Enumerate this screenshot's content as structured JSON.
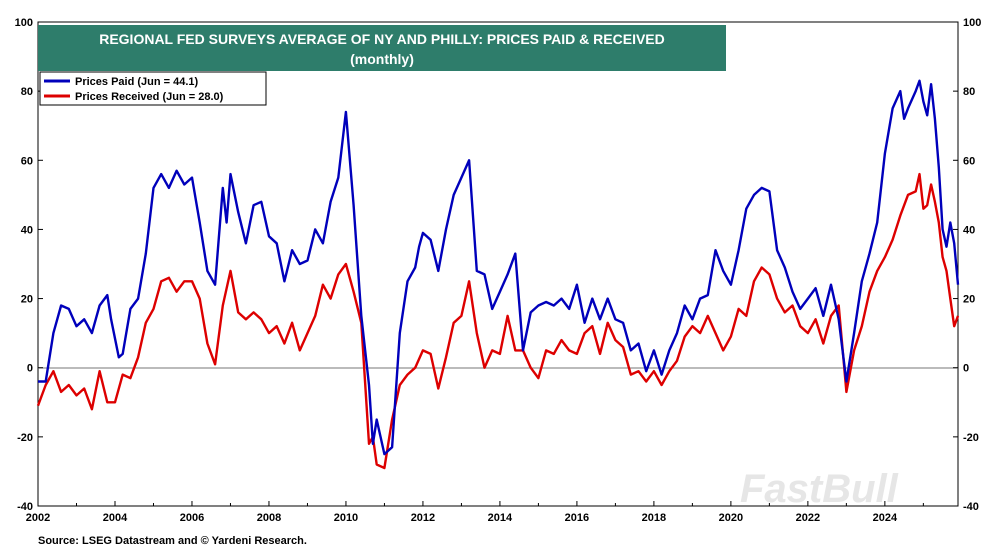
{
  "chart_data": {
    "type": "line",
    "title": "REGIONAL FED SURVEYS AVERAGE OF NY AND PHILLY: PRICES PAID & RECEIVED",
    "subtitle": "(monthly)",
    "xlabel": "",
    "ylabel": "",
    "xlim": [
      2002,
      2025.9
    ],
    "ylim": [
      -40,
      100
    ],
    "x_ticks": [
      2002,
      2004,
      2006,
      2008,
      2010,
      2012,
      2014,
      2016,
      2018,
      2020,
      2022,
      2024
    ],
    "y_ticks": [
      -40,
      -20,
      0,
      20,
      40,
      60,
      80,
      100
    ],
    "reference_line": 0,
    "grid": false,
    "legend_position": "top-left",
    "series": [
      {
        "name": "Prices Paid (Jun = 44.1)",
        "color": "#0000bb",
        "points": [
          [
            2002.0,
            -4
          ],
          [
            2002.2,
            -4
          ],
          [
            2002.4,
            10
          ],
          [
            2002.6,
            18
          ],
          [
            2002.8,
            17
          ],
          [
            2003.0,
            12
          ],
          [
            2003.2,
            14
          ],
          [
            2003.4,
            10
          ],
          [
            2003.6,
            18
          ],
          [
            2003.8,
            21
          ],
          [
            2003.9,
            14
          ],
          [
            2004.1,
            3
          ],
          [
            2004.2,
            4
          ],
          [
            2004.4,
            17
          ],
          [
            2004.6,
            20
          ],
          [
            2004.8,
            33
          ],
          [
            2005.0,
            52
          ],
          [
            2005.2,
            56
          ],
          [
            2005.4,
            52
          ],
          [
            2005.6,
            57
          ],
          [
            2005.8,
            53
          ],
          [
            2006.0,
            55
          ],
          [
            2006.2,
            42
          ],
          [
            2006.4,
            28
          ],
          [
            2006.6,
            24
          ],
          [
            2006.8,
            52
          ],
          [
            2006.9,
            42
          ],
          [
            2007.0,
            56
          ],
          [
            2007.2,
            45
          ],
          [
            2007.4,
            36
          ],
          [
            2007.6,
            47
          ],
          [
            2007.8,
            48
          ],
          [
            2008.0,
            38
          ],
          [
            2008.2,
            36
          ],
          [
            2008.4,
            25
          ],
          [
            2008.6,
            34
          ],
          [
            2008.8,
            30
          ],
          [
            2009.0,
            31
          ],
          [
            2009.2,
            40
          ],
          [
            2009.4,
            36
          ],
          [
            2009.6,
            48
          ],
          [
            2009.8,
            55
          ],
          [
            2010.0,
            74
          ],
          [
            2010.2,
            47
          ],
          [
            2010.4,
            15
          ],
          [
            2010.6,
            -5
          ],
          [
            2010.7,
            -22
          ],
          [
            2010.8,
            -15
          ],
          [
            2011.0,
            -25
          ],
          [
            2011.2,
            -23
          ],
          [
            2011.4,
            10
          ],
          [
            2011.6,
            25
          ],
          [
            2011.8,
            29
          ],
          [
            2011.9,
            35
          ],
          [
            2012.0,
            39
          ],
          [
            2012.2,
            37
          ],
          [
            2012.4,
            28
          ],
          [
            2012.6,
            40
          ],
          [
            2012.8,
            50
          ],
          [
            2013.0,
            55
          ],
          [
            2013.2,
            60
          ],
          [
            2013.4,
            28
          ],
          [
            2013.6,
            27
          ],
          [
            2013.8,
            17
          ],
          [
            2014.0,
            22
          ],
          [
            2014.2,
            27
          ],
          [
            2014.4,
            33
          ],
          [
            2014.6,
            5
          ],
          [
            2014.8,
            16
          ],
          [
            2015.0,
            18
          ],
          [
            2015.2,
            19
          ],
          [
            2015.4,
            18
          ],
          [
            2015.6,
            20
          ],
          [
            2015.8,
            17
          ],
          [
            2016.0,
            24
          ],
          [
            2016.2,
            13
          ],
          [
            2016.4,
            20
          ],
          [
            2016.6,
            14
          ],
          [
            2016.8,
            20
          ],
          [
            2017.0,
            14
          ],
          [
            2017.2,
            13
          ],
          [
            2017.4,
            5
          ],
          [
            2017.6,
            7
          ],
          [
            2017.8,
            -1
          ],
          [
            2018.0,
            5
          ],
          [
            2018.2,
            -2
          ],
          [
            2018.4,
            5
          ],
          [
            2018.6,
            10
          ],
          [
            2018.8,
            18
          ],
          [
            2019.0,
            14
          ],
          [
            2019.2,
            20
          ],
          [
            2019.4,
            21
          ],
          [
            2019.6,
            34
          ],
          [
            2019.8,
            28
          ],
          [
            2020.0,
            24
          ],
          [
            2020.2,
            34
          ],
          [
            2020.4,
            46
          ],
          [
            2020.6,
            50
          ],
          [
            2020.8,
            52
          ],
          [
            2021.0,
            51
          ],
          [
            2021.2,
            34
          ],
          [
            2021.4,
            29
          ],
          [
            2021.6,
            22
          ],
          [
            2021.8,
            17
          ],
          [
            2022.0,
            20
          ],
          [
            2022.2,
            23
          ],
          [
            2022.4,
            15
          ],
          [
            2022.6,
            24
          ],
          [
            2022.8,
            14
          ],
          [
            2023.0,
            -4
          ],
          [
            2023.2,
            10
          ],
          [
            2023.4,
            25
          ],
          [
            2023.6,
            33
          ],
          [
            2023.8,
            42
          ],
          [
            2024.0,
            62
          ],
          [
            2024.2,
            75
          ],
          [
            2024.4,
            80
          ],
          [
            2024.5,
            72
          ],
          [
            2024.6,
            75
          ],
          [
            2024.8,
            80
          ],
          [
            2024.9,
            83
          ],
          [
            2025.0,
            77
          ],
          [
            2025.1,
            73
          ],
          [
            2025.2,
            82
          ],
          [
            2025.3,
            72
          ],
          [
            2025.4,
            58
          ],
          [
            2025.5,
            40
          ],
          [
            2025.6,
            35
          ],
          [
            2025.7,
            42
          ],
          [
            2025.8,
            36
          ],
          [
            2025.9,
            24
          ]
        ]
      },
      {
        "name": "Prices Received (Jun = 28.0)",
        "color": "#dd0000",
        "points": [
          [
            2002.0,
            -11
          ],
          [
            2002.2,
            -5
          ],
          [
            2002.4,
            -1
          ],
          [
            2002.6,
            -7
          ],
          [
            2002.8,
            -5
          ],
          [
            2003.0,
            -8
          ],
          [
            2003.2,
            -6
          ],
          [
            2003.4,
            -12
          ],
          [
            2003.6,
            -1
          ],
          [
            2003.8,
            -10
          ],
          [
            2004.0,
            -10
          ],
          [
            2004.2,
            -2
          ],
          [
            2004.4,
            -3
          ],
          [
            2004.6,
            3
          ],
          [
            2004.8,
            13
          ],
          [
            2005.0,
            17
          ],
          [
            2005.2,
            25
          ],
          [
            2005.4,
            26
          ],
          [
            2005.6,
            22
          ],
          [
            2005.8,
            25
          ],
          [
            2006.0,
            25
          ],
          [
            2006.2,
            20
          ],
          [
            2006.4,
            7
          ],
          [
            2006.6,
            1
          ],
          [
            2006.8,
            18
          ],
          [
            2007.0,
            28
          ],
          [
            2007.2,
            16
          ],
          [
            2007.4,
            14
          ],
          [
            2007.6,
            16
          ],
          [
            2007.8,
            14
          ],
          [
            2008.0,
            10
          ],
          [
            2008.2,
            12
          ],
          [
            2008.4,
            7
          ],
          [
            2008.6,
            13
          ],
          [
            2008.8,
            5
          ],
          [
            2009.0,
            10
          ],
          [
            2009.2,
            15
          ],
          [
            2009.4,
            24
          ],
          [
            2009.6,
            20
          ],
          [
            2009.8,
            27
          ],
          [
            2010.0,
            30
          ],
          [
            2010.2,
            22
          ],
          [
            2010.4,
            13
          ],
          [
            2010.6,
            -22
          ],
          [
            2010.7,
            -20
          ],
          [
            2010.8,
            -28
          ],
          [
            2011.0,
            -29
          ],
          [
            2011.2,
            -15
          ],
          [
            2011.4,
            -5
          ],
          [
            2011.6,
            -2
          ],
          [
            2011.8,
            0
          ],
          [
            2012.0,
            5
          ],
          [
            2012.2,
            4
          ],
          [
            2012.4,
            -6
          ],
          [
            2012.6,
            3
          ],
          [
            2012.8,
            13
          ],
          [
            2013.0,
            15
          ],
          [
            2013.2,
            25
          ],
          [
            2013.4,
            10
          ],
          [
            2013.6,
            0
          ],
          [
            2013.8,
            5
          ],
          [
            2014.0,
            4
          ],
          [
            2014.2,
            15
          ],
          [
            2014.4,
            5
          ],
          [
            2014.6,
            5
          ],
          [
            2014.8,
            0
          ],
          [
            2015.0,
            -3
          ],
          [
            2015.2,
            5
          ],
          [
            2015.4,
            4
          ],
          [
            2015.6,
            8
          ],
          [
            2015.8,
            5
          ],
          [
            2016.0,
            4
          ],
          [
            2016.2,
            10
          ],
          [
            2016.4,
            12
          ],
          [
            2016.6,
            4
          ],
          [
            2016.8,
            13
          ],
          [
            2017.0,
            8
          ],
          [
            2017.2,
            6
          ],
          [
            2017.4,
            -2
          ],
          [
            2017.6,
            -1
          ],
          [
            2017.8,
            -4
          ],
          [
            2018.0,
            -1
          ],
          [
            2018.2,
            -5
          ],
          [
            2018.4,
            -1
          ],
          [
            2018.6,
            2
          ],
          [
            2018.8,
            9
          ],
          [
            2019.0,
            12
          ],
          [
            2019.2,
            10
          ],
          [
            2019.4,
            15
          ],
          [
            2019.6,
            10
          ],
          [
            2019.8,
            5
          ],
          [
            2020.0,
            9
          ],
          [
            2020.2,
            17
          ],
          [
            2020.4,
            15
          ],
          [
            2020.6,
            25
          ],
          [
            2020.8,
            29
          ],
          [
            2021.0,
            27
          ],
          [
            2021.2,
            20
          ],
          [
            2021.4,
            16
          ],
          [
            2021.6,
            18
          ],
          [
            2021.8,
            12
          ],
          [
            2022.0,
            10
          ],
          [
            2022.2,
            14
          ],
          [
            2022.4,
            7
          ],
          [
            2022.6,
            15
          ],
          [
            2022.8,
            18
          ],
          [
            2023.0,
            -7
          ],
          [
            2023.2,
            5
          ],
          [
            2023.4,
            12
          ],
          [
            2023.6,
            22
          ],
          [
            2023.8,
            28
          ],
          [
            2024.0,
            32
          ],
          [
            2024.2,
            37
          ],
          [
            2024.4,
            44
          ],
          [
            2024.6,
            50
          ],
          [
            2024.8,
            51
          ],
          [
            2024.9,
            56
          ],
          [
            2025.0,
            46
          ],
          [
            2025.1,
            47
          ],
          [
            2025.2,
            53
          ],
          [
            2025.3,
            48
          ],
          [
            2025.4,
            42
          ],
          [
            2025.5,
            32
          ],
          [
            2025.6,
            28
          ],
          [
            2025.7,
            20
          ],
          [
            2025.8,
            12
          ],
          [
            2025.9,
            15
          ]
        ]
      }
    ],
    "source": "Source: LSEG Datastream and © Yardeni Research.",
    "watermark": "FastBull"
  },
  "colors": {
    "title_bg": "#2e7d6b",
    "axis": "#000000",
    "zero_line": "#555555"
  }
}
